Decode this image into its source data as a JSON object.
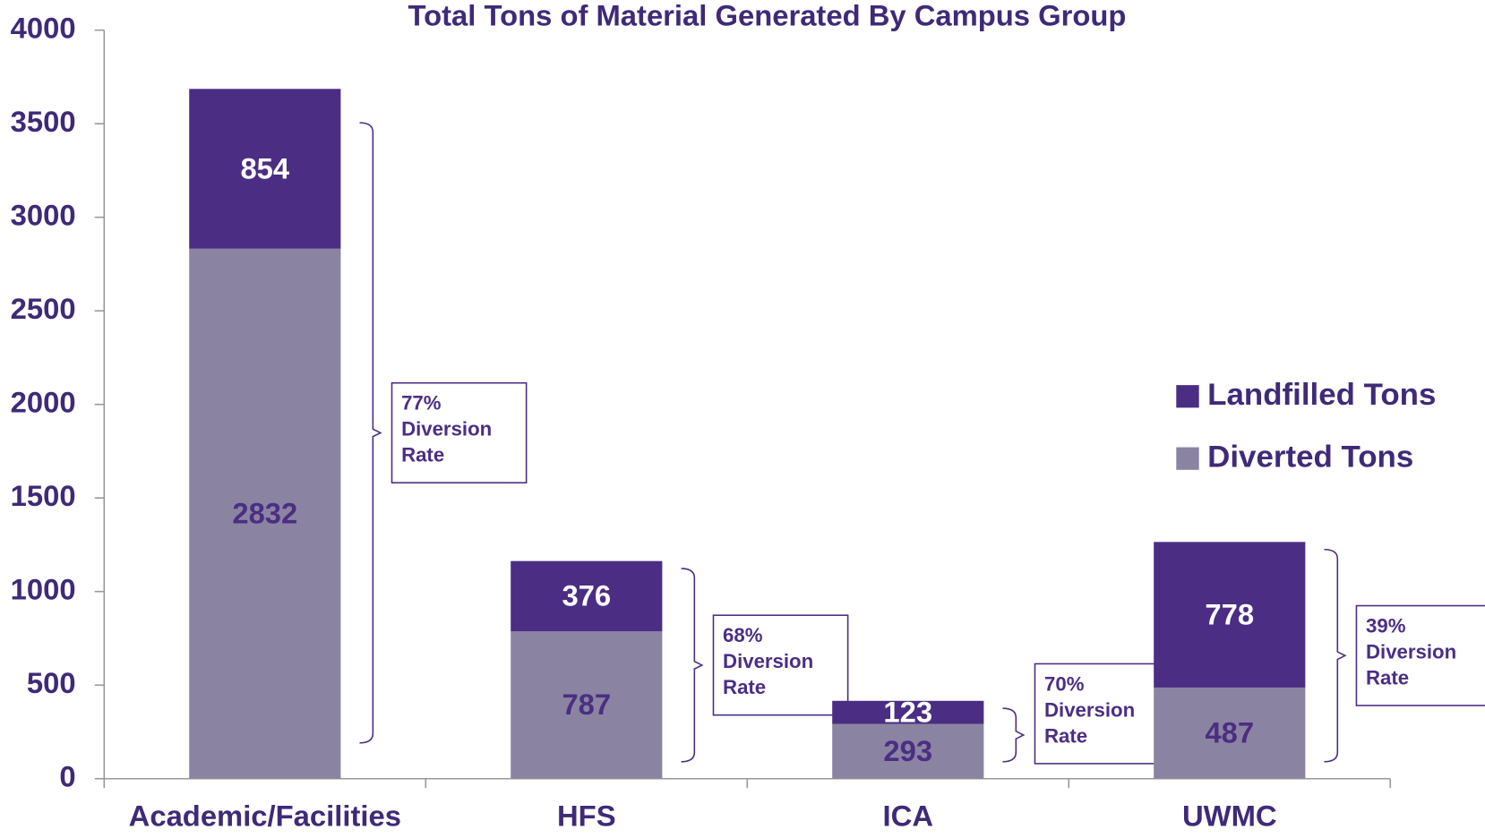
{
  "chart_data": {
    "type": "stacked_bar",
    "title": "Total Tons of Material Generated By Campus Group",
    "categories": [
      "Academic/Facilities",
      "HFS",
      "ICA",
      "UWMC"
    ],
    "series": [
      {
        "name": "Diverted Tons",
        "color": "#8a84a2",
        "values": [
          2832,
          787,
          293,
          487
        ]
      },
      {
        "name": "Landfilled Tons",
        "color": "#4b2e83",
        "values": [
          854,
          376,
          123,
          778
        ]
      }
    ],
    "ylim": [
      0,
      4000
    ],
    "yticks": [
      0,
      500,
      1000,
      1500,
      2000,
      2500,
      3000,
      3500,
      4000
    ],
    "annotations": [
      {
        "lines": [
          "77%",
          "Diversion",
          "Rate"
        ]
      },
      {
        "lines": [
          "68%",
          "Diversion",
          "Rate"
        ]
      },
      {
        "lines": [
          "70%",
          "Diversion",
          "Rate"
        ]
      },
      {
        "lines": [
          "39%",
          "Diversion",
          "Rate"
        ]
      }
    ],
    "legend": "right"
  }
}
